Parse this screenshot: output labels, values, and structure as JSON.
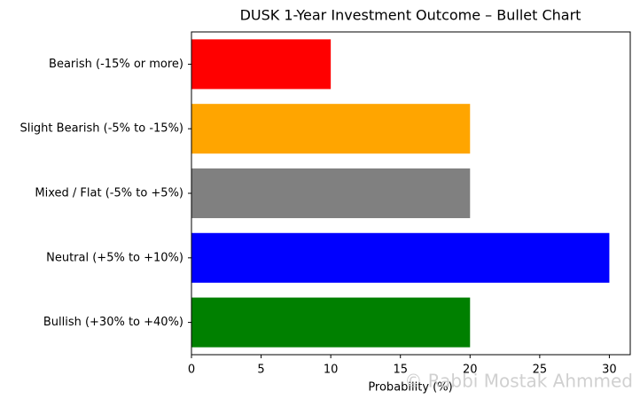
{
  "chart_data": {
    "type": "barh",
    "title": "DUSK 1-Year Investment Outcome – Bullet Chart",
    "x_label": "Probability (%)",
    "categories": [
      "Bullish (+30% to +40%)",
      "Neutral (+5% to +10%)",
      "Mixed / Flat (-5% to +5%)",
      "Slight Bearish (-5% to -15%)",
      "Bearish (-15% or more)"
    ],
    "values": [
      20,
      30,
      20,
      20,
      10
    ],
    "colors": [
      "#008000",
      "#0000ff",
      "#808080",
      "#ffa500",
      "#ff0000"
    ],
    "xlim": [
      0,
      31.5
    ],
    "xticks": [
      0,
      5,
      10,
      15,
      20,
      25,
      30
    ],
    "watermark": "© Rabbi Mostak Ahmmed"
  }
}
